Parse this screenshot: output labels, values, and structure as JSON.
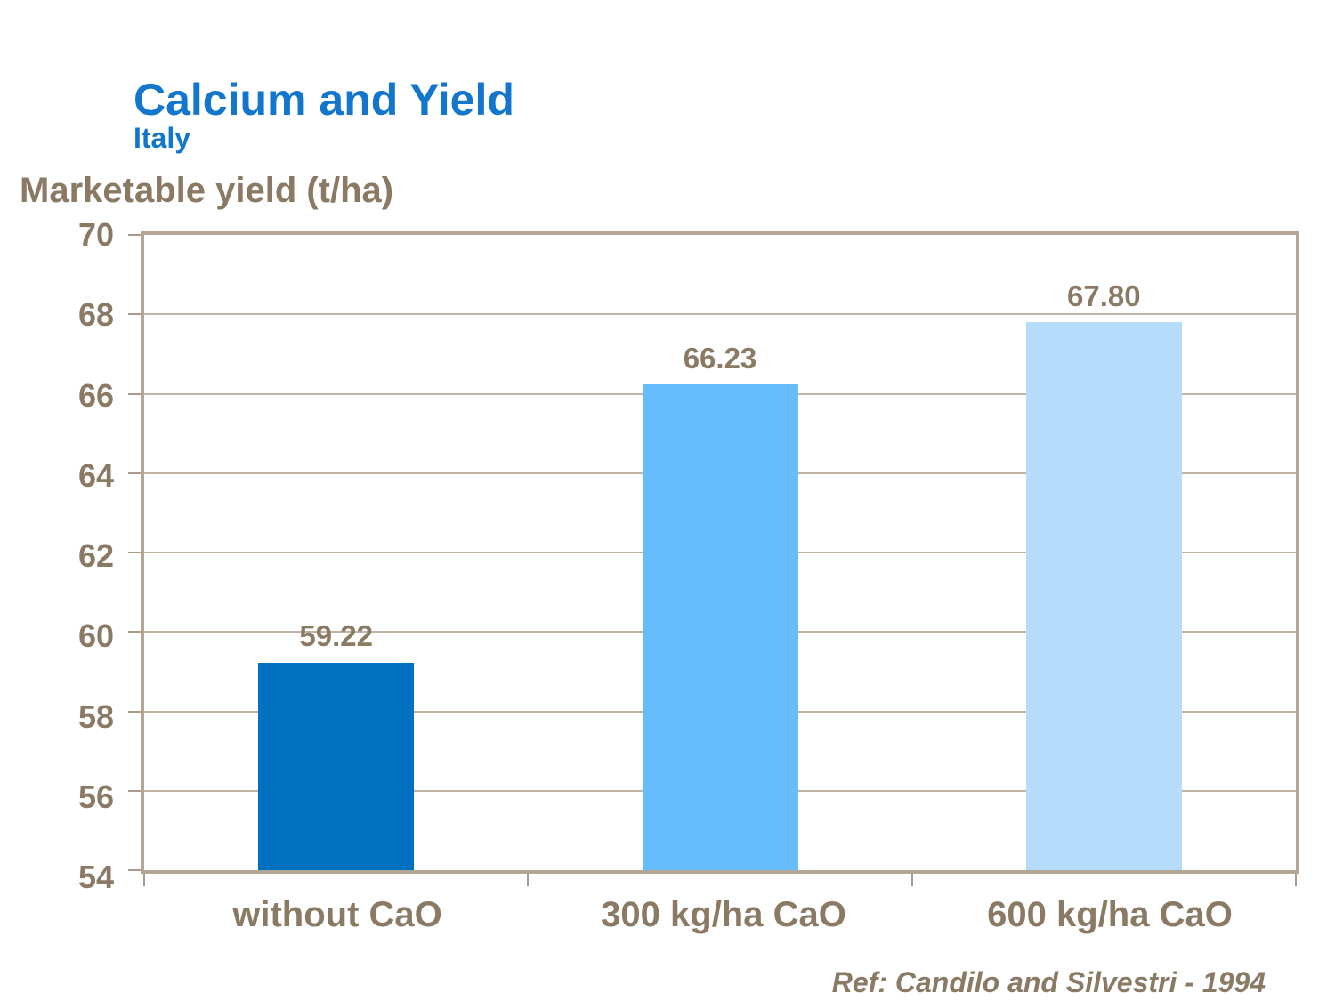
{
  "page": {
    "background": "#ffffff"
  },
  "chart_data": {
    "type": "bar",
    "title": "Calcium and Yield",
    "subtitle": "Italy",
    "ylabel": "Marketable yield (t/ha)",
    "xlabel": "",
    "categories": [
      "without CaO",
      "300 kg/ha CaO",
      "600 kg/ha CaO"
    ],
    "values": [
      59.22,
      66.23,
      67.8
    ],
    "value_labels": [
      "59.22",
      "66.23",
      "67.80"
    ],
    "bar_colors": [
      "#0070C0",
      "#67BCFB",
      "#B6DCFB"
    ],
    "ylim": [
      54,
      70
    ],
    "yticks": [
      70,
      68,
      66,
      64,
      62,
      60,
      58,
      56,
      54
    ],
    "grid": true,
    "legend_position": "none",
    "colors": {
      "title": "#1176CC",
      "axis_text": "#8A7963",
      "plot_border": "#B3A696",
      "gridline": "#BFB3A3",
      "tick_mark": "#A89B8B"
    }
  },
  "footer": {
    "reference": "Ref: Candilo and Silvestri - 1994"
  }
}
